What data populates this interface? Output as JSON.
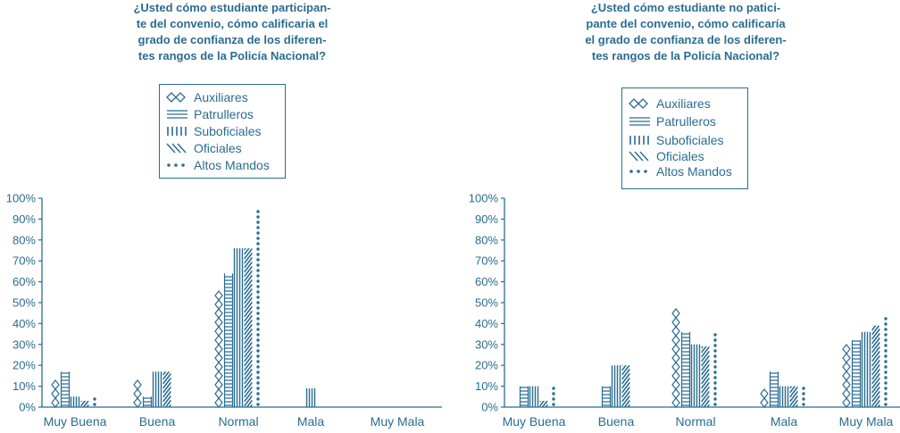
{
  "colors": {
    "primary": "#2a6c91"
  },
  "legend_labels": [
    "Auxiliares",
    "Patrulleros",
    "Suboficiales",
    "Oficiales",
    "Altos Mandos"
  ],
  "chart_data": [
    {
      "type": "bar",
      "title_lines": [
        "¿Usted cómo estudiante participan-",
        "te del convenio, cómo calificaria el",
        "grado de confianza de los diferen-",
        "tes rangos de la Policía Nacional?"
      ],
      "categories": [
        "Muy Buena",
        "Buena",
        "Normal",
        "Mala",
        "Muy Mala"
      ],
      "y_ticks": [
        "0%",
        "10%",
        "20%",
        "30%",
        "40%",
        "50%",
        "60%",
        "70%",
        "80%",
        "90%",
        "100%"
      ],
      "ylim": [
        0,
        100
      ],
      "unit": "%",
      "series": [
        {
          "name": "Auxiliares",
          "pattern": "diamond",
          "values": [
            15,
            15,
            57,
            0,
            3
          ]
        },
        {
          "name": "Patrulleros",
          "pattern": "horizontal",
          "values": [
            17,
            5,
            64,
            0,
            0
          ]
        },
        {
          "name": "Suboficiales",
          "pattern": "vertical",
          "values": [
            5,
            17,
            76,
            9,
            0
          ]
        },
        {
          "name": "Oficiales",
          "pattern": "diagonal",
          "values": [
            3,
            17,
            76,
            0,
            0
          ]
        },
        {
          "name": "Altos Mandos",
          "pattern": "dots",
          "values": [
            5,
            0,
            95,
            0,
            0
          ]
        }
      ],
      "grid": false,
      "legend_position": "top-center"
    },
    {
      "type": "bar",
      "title_lines": [
        "¿Usted cómo estudiante no patici-",
        "pante del convenio, cómo calificaría",
        "el grado de confianza de los diferen-",
        "tes rangos de la Policía Nacional?"
      ],
      "categories": [
        "Muy Buena",
        "Buena",
        "Normal",
        "Mala",
        "Muy Mala"
      ],
      "y_ticks": [
        "0%",
        "10%",
        "20%",
        "30%",
        "40%",
        "50%",
        "60%",
        "70%",
        "80%",
        "90%",
        "100%"
      ],
      "ylim": [
        0,
        100
      ],
      "unit": "%",
      "series": [
        {
          "name": "Auxiliares",
          "pattern": "diamond",
          "values": [
            3,
            3,
            49,
            10,
            30
          ]
        },
        {
          "name": "Patrulleros",
          "pattern": "horizontal",
          "values": [
            10,
            10,
            36,
            17,
            32
          ]
        },
        {
          "name": "Suboficiales",
          "pattern": "vertical",
          "values": [
            10,
            20,
            30,
            10,
            36
          ]
        },
        {
          "name": "Oficiales",
          "pattern": "diagonal",
          "values": [
            3,
            20,
            29,
            10,
            39
          ]
        },
        {
          "name": "Altos Mandos",
          "pattern": "dots",
          "values": [
            10,
            0,
            36,
            10,
            44
          ]
        }
      ],
      "grid": false,
      "legend_position": "top-center"
    }
  ]
}
